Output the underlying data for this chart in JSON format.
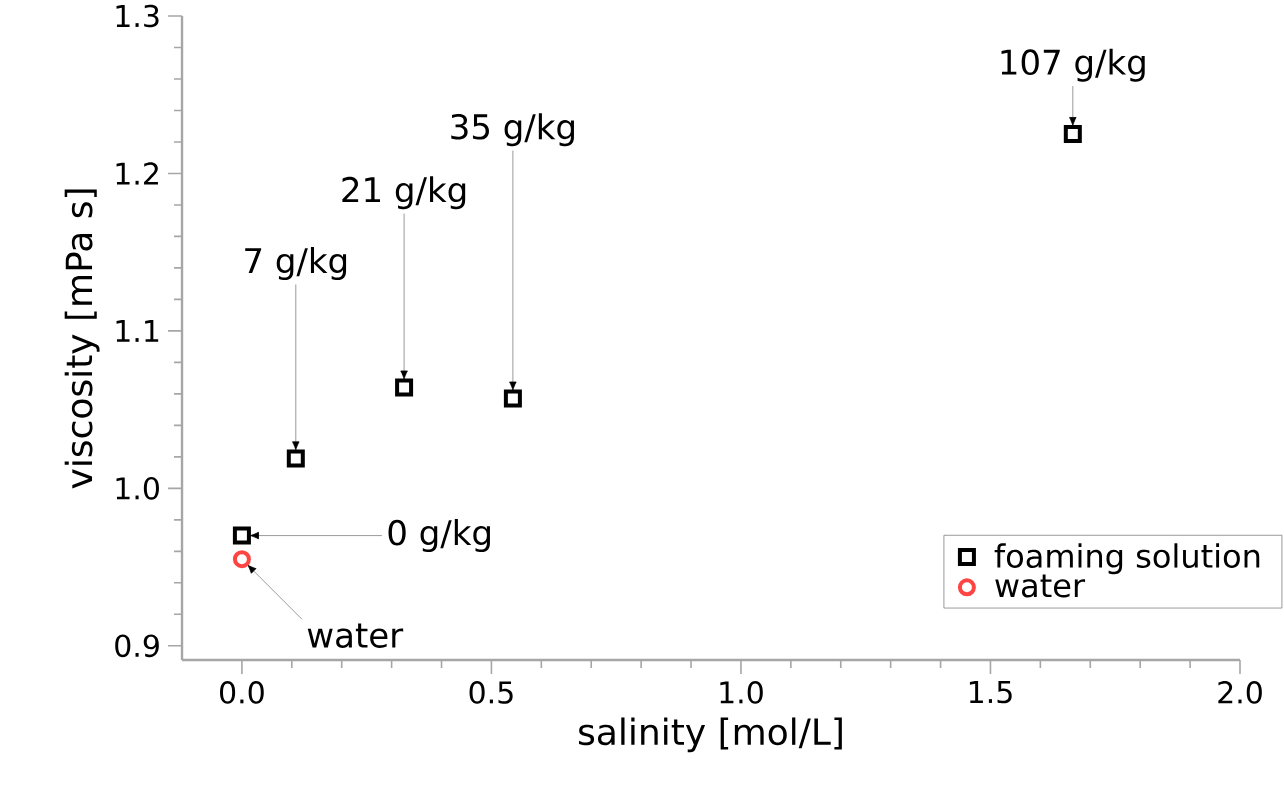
{
  "chart_data": {
    "type": "scatter",
    "xlabel": "salinity [mol/L]",
    "ylabel": "viscosity [mPa s]",
    "xlim": [
      -0.12,
      2.0
    ],
    "ylim": [
      0.891,
      1.3
    ],
    "xticks": [
      {
        "value": 0,
        "label": "0.0"
      },
      0.5,
      {
        "value": 1,
        "label": "1.0"
      },
      1.5,
      {
        "value": 2,
        "label": "2.0"
      }
    ],
    "yticks": [
      0.9,
      {
        "value": 1,
        "label": "1.0"
      },
      1.1,
      1.2,
      1.3
    ],
    "series": [
      {
        "name": "foaming solution",
        "color": "#000000",
        "marker": "square",
        "x": [
          0,
          0.108,
          0.325,
          0.543,
          1.665
        ],
        "values": [
          0.97,
          1.019,
          1.064,
          1.057,
          1.225
        ]
      },
      {
        "name": "water",
        "color": "#ff4444",
        "marker": "circle",
        "x": [
          0
        ],
        "values": [
          0.955
        ]
      }
    ],
    "annotations": [
      {
        "text": "0 g/kg",
        "x": 0,
        "y": 0.97
      },
      {
        "text": "water",
        "x": 0,
        "y": 0.955
      },
      {
        "text": "7 g/kg",
        "x": 0.108,
        "y": 1.019
      },
      {
        "text": "21 g/kg",
        "x": 0.325,
        "y": 1.064
      },
      {
        "text": "35 g/kg",
        "x": 0.543,
        "y": 1.057
      },
      {
        "text": "107 g/kg",
        "x": 1.665,
        "y": 1.225
      }
    ],
    "legend": "bottom right",
    "grid": false
  }
}
